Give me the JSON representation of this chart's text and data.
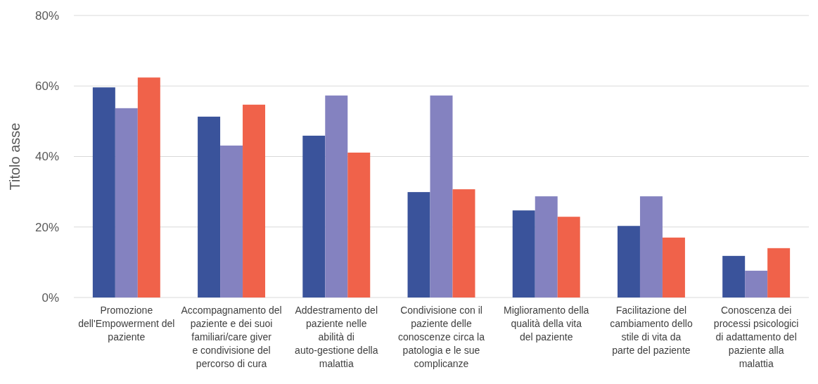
{
  "chart_data": {
    "type": "bar",
    "ylabel": "Titolo asse",
    "categories": [
      "Promozione dell'Empowerment del paziente",
      "Accompagnamento del paziente e dei suoi familiari/care giver e condivisione del percorso di cura",
      "Addestramento del paziente nelle abilità di auto-gestione della malattia",
      "Condivisione con il paziente delle conoscenze circa la patologia e le sue complicanze",
      "Miglioramento della qualità della vita del paziente",
      "Facilitazione del cambiamento dello stile di vita da parte del paziente",
      "Conoscenza dei processi psicologici di adattamento del paziente alla malattia"
    ],
    "series": [
      {
        "color": "#3a539b",
        "values": [
          59.6,
          51.3,
          45.9,
          29.9,
          24.7,
          20.3,
          11.8
        ]
      },
      {
        "color": "#8482c0",
        "values": [
          53.7,
          43.1,
          57.3,
          57.3,
          28.7,
          28.7,
          7.6
        ]
      },
      {
        "color": "#f0624a",
        "values": [
          62.4,
          54.7,
          41.1,
          30.7,
          22.9,
          17.0,
          14.0
        ]
      }
    ],
    "ylim": [
      0,
      80
    ],
    "yticks": [
      {
        "value": 0,
        "label": "0%"
      },
      {
        "value": 20,
        "label": "20%"
      },
      {
        "value": 40,
        "label": "40%"
      },
      {
        "value": 60,
        "label": "60%"
      },
      {
        "value": 80,
        "label": "80%"
      }
    ],
    "grid": "y"
  }
}
